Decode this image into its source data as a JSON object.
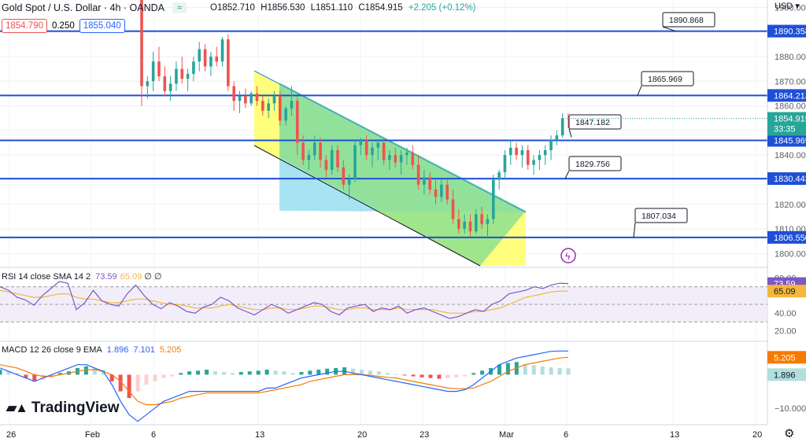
{
  "header": {
    "symbol": "Gold Spot / U.S. Dollar · 4h · OANDA",
    "open": "O1852.710",
    "high": "H1856.530",
    "low": "L1851.110",
    "close": "C1854.915",
    "change": "+2.205 (+0.12%)",
    "icon": "wave-icon"
  },
  "price_row": {
    "sell": "1854.790",
    "spread": "0.250",
    "buy": "1855.040"
  },
  "currency": "USD",
  "branding": "TradingView",
  "colors": {
    "up": "#26a69a",
    "down": "#ef5350",
    "level_line": "#1f4fd6",
    "channel_green": "#8ee08e",
    "channel_yellow": "#ffff66",
    "channel_blue": "#9fe0f0",
    "rsi": "#7e57c2",
    "rsi_sma": "#f5b63b",
    "macd": "#2962ff",
    "signal": "#f57c00",
    "price_tag": "#26a69a"
  },
  "chart_data": {
    "type": "candlestick",
    "price_axis": {
      "ticks": [
        "1900.000",
        "1890.000",
        "1880.000",
        "1870.000",
        "1860.000",
        "1850.000",
        "1840.000",
        "1830.000",
        "1820.000",
        "1810.000",
        "1800.000"
      ],
      "ylim": [
        1795,
        1903
      ]
    },
    "time_axis": {
      "labels": [
        "26",
        "Feb",
        "6",
        "13",
        "20",
        "23",
        "Mar",
        "6",
        "13",
        "20"
      ]
    },
    "price_tag": {
      "price": "1854.915",
      "countdown": "33:35"
    },
    "level_tags": [
      "1890.358",
      "1864.213",
      "1845.969",
      "1830.443",
      "1806.550"
    ],
    "levels": [
      1890.358,
      1864.213,
      1845.969,
      1830.443,
      1806.55
    ],
    "callouts": [
      "1890.868",
      "1865.969",
      "1847.182",
      "1829.756",
      "1807.034"
    ],
    "candles": [
      [
        1908,
        1912,
        1860,
        1868
      ],
      [
        1868,
        1872,
        1863,
        1870
      ],
      [
        1870,
        1882,
        1866,
        1878
      ],
      [
        1878,
        1884,
        1870,
        1872
      ],
      [
        1872,
        1876,
        1864,
        1866
      ],
      [
        1866,
        1872,
        1862,
        1869
      ],
      [
        1869,
        1878,
        1866,
        1875
      ],
      [
        1875,
        1880,
        1869,
        1871
      ],
      [
        1871,
        1875,
        1866,
        1873
      ],
      [
        1873,
        1880,
        1870,
        1878
      ],
      [
        1878,
        1886,
        1874,
        1883
      ],
      [
        1883,
        1885,
        1874,
        1876
      ],
      [
        1876,
        1882,
        1872,
        1880
      ],
      [
        1880,
        1884,
        1876,
        1878
      ],
      [
        1878,
        1888,
        1876,
        1887
      ],
      [
        1887,
        1889,
        1866,
        1868
      ],
      [
        1868,
        1870,
        1858,
        1862
      ],
      [
        1862,
        1866,
        1857,
        1864
      ],
      [
        1864,
        1867,
        1859,
        1861
      ],
      [
        1861,
        1866,
        1860,
        1865
      ],
      [
        1865,
        1868,
        1860,
        1862
      ],
      [
        1862,
        1864,
        1856,
        1858
      ],
      [
        1858,
        1863,
        1855,
        1861
      ],
      [
        1861,
        1866,
        1858,
        1864
      ],
      [
        1864,
        1866,
        1852,
        1854
      ],
      [
        1854,
        1860,
        1852,
        1859
      ],
      [
        1859,
        1868,
        1856,
        1862
      ],
      [
        1862,
        1864,
        1840,
        1845
      ],
      [
        1845,
        1848,
        1836,
        1838
      ],
      [
        1838,
        1842,
        1834,
        1840
      ],
      [
        1840,
        1848,
        1838,
        1845
      ],
      [
        1845,
        1847,
        1835,
        1838
      ],
      [
        1838,
        1840,
        1831,
        1834
      ],
      [
        1834,
        1844,
        1832,
        1842
      ],
      [
        1842,
        1844,
        1833,
        1835
      ],
      [
        1835,
        1838,
        1826,
        1828
      ],
      [
        1828,
        1832,
        1822,
        1830
      ],
      [
        1830,
        1846,
        1829,
        1844
      ],
      [
        1844,
        1847,
        1840,
        1846
      ],
      [
        1846,
        1848,
        1838,
        1840
      ],
      [
        1840,
        1845,
        1835,
        1843
      ],
      [
        1843,
        1846,
        1838,
        1845
      ],
      [
        1845,
        1847,
        1836,
        1838
      ],
      [
        1838,
        1842,
        1834,
        1840
      ],
      [
        1840,
        1843,
        1835,
        1837
      ],
      [
        1837,
        1842,
        1832,
        1840
      ],
      [
        1840,
        1843,
        1836,
        1841
      ],
      [
        1841,
        1844,
        1834,
        1836
      ],
      [
        1836,
        1840,
        1826,
        1828
      ],
      [
        1828,
        1834,
        1824,
        1831
      ],
      [
        1831,
        1833,
        1824,
        1826
      ],
      [
        1826,
        1830,
        1820,
        1823
      ],
      [
        1823,
        1830,
        1821,
        1828
      ],
      [
        1828,
        1830,
        1820,
        1822
      ],
      [
        1822,
        1826,
        1812,
        1814
      ],
      [
        1814,
        1818,
        1808,
        1810
      ],
      [
        1810,
        1816,
        1808,
        1813
      ],
      [
        1813,
        1816,
        1807,
        1809
      ],
      [
        1809,
        1818,
        1808,
        1816
      ],
      [
        1816,
        1819,
        1810,
        1812
      ],
      [
        1812,
        1816,
        1806,
        1814
      ],
      [
        1814,
        1832,
        1812,
        1830
      ],
      [
        1830,
        1834,
        1826,
        1833
      ],
      [
        1833,
        1842,
        1830,
        1840
      ],
      [
        1840,
        1846,
        1836,
        1843
      ],
      [
        1843,
        1845,
        1838,
        1840
      ],
      [
        1840,
        1844,
        1835,
        1842
      ],
      [
        1842,
        1844,
        1834,
        1836
      ],
      [
        1836,
        1840,
        1832,
        1838
      ],
      [
        1838,
        1842,
        1834,
        1840
      ],
      [
        1840,
        1844,
        1836,
        1842
      ],
      [
        1842,
        1848,
        1838,
        1846
      ],
      [
        1846,
        1850,
        1844,
        1848
      ],
      [
        1848,
        1857,
        1847,
        1855
      ],
      [
        1855,
        1857,
        1851,
        1854.9
      ]
    ]
  },
  "rsi": {
    "label": "RSI 14 close SMA 14 2",
    "value": "73.59",
    "sma": "65.09",
    "extra": "∅ ∅",
    "ticks": [
      "80.00",
      "40.00",
      "20.00"
    ],
    "values": [
      70,
      66,
      58,
      55,
      49,
      60,
      68,
      76,
      74,
      44,
      52,
      66,
      54,
      50,
      48,
      62,
      72,
      60,
      50,
      45,
      52,
      48,
      42,
      40,
      47,
      50,
      58,
      54,
      46,
      42,
      38,
      44,
      50,
      46,
      40,
      44,
      48,
      52,
      50,
      42,
      38,
      46,
      48,
      50,
      42,
      46,
      44,
      48,
      40,
      44,
      46,
      42,
      38,
      34,
      36,
      40,
      44,
      42,
      50,
      54,
      62,
      64,
      66,
      70,
      68,
      72,
      74,
      73.59
    ],
    "sma_values": [
      66,
      64,
      62,
      60,
      58,
      58,
      60,
      62,
      62,
      58,
      56,
      56,
      54,
      52,
      52,
      54,
      56,
      56,
      54,
      52,
      50,
      50,
      48,
      46,
      46,
      46,
      48,
      50,
      48,
      46,
      44,
      44,
      46,
      46,
      44,
      44,
      46,
      48,
      48,
      46,
      44,
      44,
      46,
      46,
      44,
      44,
      44,
      46,
      44,
      44,
      44,
      44,
      42,
      40,
      40,
      40,
      42,
      42,
      44,
      46,
      50,
      54,
      58,
      60,
      62,
      64,
      65,
      65.09
    ]
  },
  "macd": {
    "label": "MACD 12 26 close 9 EMA",
    "hist_value": "1.896",
    "macd_value": "7.101",
    "signal_value": "5.205",
    "ticks": [
      "0.000",
      "−10.000"
    ],
    "hist": [
      1.5,
      1,
      0.5,
      -1,
      -2,
      -1.5,
      -1,
      0.5,
      1,
      2,
      2.5,
      2,
      1.5,
      -2,
      -5,
      -7,
      -5,
      -3,
      -2,
      -1,
      -0.5,
      0.5,
      1,
      1.2,
      1.5,
      1,
      0.8,
      0.5,
      0.8,
      1,
      1.2,
      1.5,
      1.2,
      1,
      0.5,
      0.8,
      1.2,
      1.5,
      1.8,
      2,
      2.2,
      1.8,
      1.5,
      1.2,
      1,
      0.5,
      0.2,
      -0.2,
      -0.5,
      -0.8,
      -1,
      -1.2,
      -1,
      -0.8,
      -0.5,
      0.5,
      1.2,
      2,
      3,
      3.5,
      3.8,
      3.2,
      2.8,
      2.5,
      2.2,
      2,
      1.9
    ],
    "macd_line": [
      2,
      1,
      0,
      -1,
      -2,
      -1,
      0,
      1,
      2,
      3,
      3,
      2,
      1,
      -3,
      -8,
      -12,
      -14,
      -12,
      -10,
      -8,
      -7,
      -6,
      -5,
      -5,
      -5,
      -5,
      -5,
      -5,
      -5,
      -5,
      -5,
      -4,
      -4,
      -3,
      -2,
      -1,
      -0.5,
      0,
      0.5,
      1,
      1,
      0.5,
      0,
      -0.5,
      -1,
      -1.5,
      -2,
      -2.5,
      -3,
      -3.5,
      -4,
      -4.5,
      -5,
      -5,
      -4.5,
      -3,
      -1,
      1,
      3,
      4,
      5,
      5.5,
      6,
      6.5,
      7,
      7.1,
      7.101
    ],
    "signal_line": [
      3,
      2.5,
      2,
      1,
      0,
      -0.5,
      -0.5,
      0,
      0.5,
      1,
      1.5,
      1.5,
      1,
      0,
      -2,
      -5,
      -8,
      -9,
      -9,
      -8.5,
      -8,
      -7,
      -6.5,
      -6,
      -5.5,
      -5.5,
      -5.5,
      -5.5,
      -5.5,
      -5.5,
      -5.5,
      -5,
      -4.5,
      -4,
      -3.5,
      -3,
      -2,
      -1.5,
      -1,
      -0.5,
      0,
      0,
      0,
      -0.2,
      -0.5,
      -0.8,
      -1,
      -1.5,
      -2,
      -2.5,
      -3,
      -3.5,
      -4,
      -4.2,
      -4.2,
      -4,
      -3,
      -2,
      -0.5,
      1,
      2,
      3,
      3.5,
      4,
      4.5,
      5,
      5.205
    ]
  }
}
